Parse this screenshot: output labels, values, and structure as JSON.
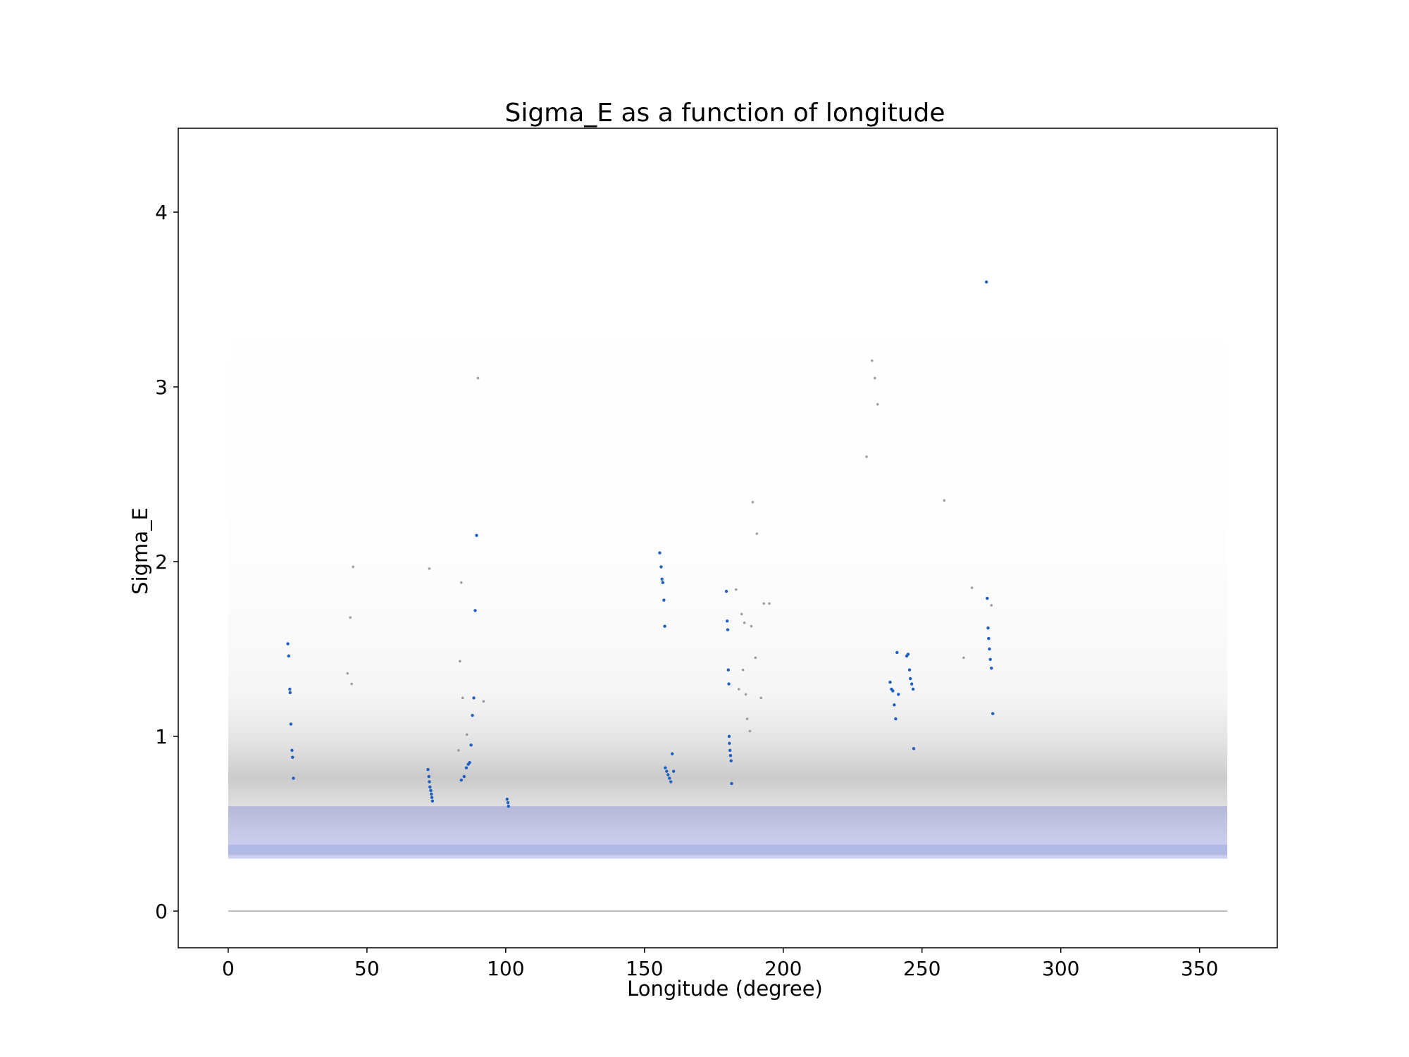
{
  "chart_data": {
    "type": "scatter",
    "title": "Sigma_E as a function of longitude",
    "xlabel": "Longitude (degree)",
    "ylabel": "Sigma_E",
    "xlim": [
      -18,
      378
    ],
    "ylim": [
      -0.21,
      4.48
    ],
    "xticks": [
      0,
      50,
      100,
      150,
      200,
      250,
      300,
      350
    ],
    "yticks": [
      0,
      1,
      2,
      3,
      4
    ],
    "grid": false,
    "legend": "none",
    "colors": {
      "background_points": "#808080",
      "density_band": "#4a5bc4",
      "highlight_points": "#1f5fbf",
      "frame": "#000000"
    },
    "background_distribution": {
      "x_range": [
        0,
        360
      ],
      "dense_band_y": [
        0.3,
        0.6
      ],
      "spread_y_max": 4.2,
      "zero_line_y": 0.0
    },
    "series": [
      {
        "values": [
          [
            21.5,
            1.53
          ],
          [
            21.8,
            1.46
          ],
          [
            22.2,
            1.27
          ],
          [
            22.3,
            1.25
          ],
          [
            22.6,
            1.07
          ],
          [
            23.0,
            0.92
          ],
          [
            23.2,
            0.88
          ],
          [
            23.5,
            0.76
          ],
          [
            72.0,
            0.81
          ],
          [
            72.3,
            0.77
          ],
          [
            72.5,
            0.74
          ],
          [
            72.7,
            0.71
          ],
          [
            73.0,
            0.69
          ],
          [
            73.2,
            0.67
          ],
          [
            73.4,
            0.65
          ],
          [
            73.6,
            0.63
          ],
          [
            84.0,
            0.75
          ],
          [
            85.0,
            0.77
          ],
          [
            85.8,
            0.82
          ],
          [
            86.5,
            0.84
          ],
          [
            87.0,
            0.85
          ],
          [
            87.5,
            0.95
          ],
          [
            88.0,
            1.12
          ],
          [
            88.5,
            1.22
          ],
          [
            89.0,
            1.72
          ],
          [
            89.5,
            2.15
          ],
          [
            100.5,
            0.64
          ],
          [
            100.8,
            0.62
          ],
          [
            101.0,
            0.6
          ],
          [
            155.5,
            2.05
          ],
          [
            156.0,
            1.97
          ],
          [
            156.3,
            1.9
          ],
          [
            156.6,
            1.88
          ],
          [
            157.0,
            1.78
          ],
          [
            157.3,
            1.63
          ],
          [
            157.5,
            0.82
          ],
          [
            158.0,
            0.8
          ],
          [
            158.5,
            0.78
          ],
          [
            159.0,
            0.76
          ],
          [
            159.5,
            0.74
          ],
          [
            160.0,
            0.9
          ],
          [
            160.5,
            0.8
          ],
          [
            179.5,
            1.83
          ],
          [
            179.8,
            1.66
          ],
          [
            180.0,
            1.61
          ],
          [
            180.2,
            1.38
          ],
          [
            180.4,
            1.3
          ],
          [
            180.5,
            1.0
          ],
          [
            180.6,
            0.96
          ],
          [
            180.8,
            0.92
          ],
          [
            181.0,
            0.89
          ],
          [
            181.2,
            0.86
          ],
          [
            181.4,
            0.73
          ],
          [
            238.5,
            1.31
          ],
          [
            239.0,
            1.27
          ],
          [
            239.5,
            1.26
          ],
          [
            240.0,
            1.18
          ],
          [
            240.5,
            1.1
          ],
          [
            241.0,
            1.48
          ],
          [
            241.5,
            1.24
          ],
          [
            244.5,
            1.46
          ],
          [
            245.0,
            1.47
          ],
          [
            245.5,
            1.38
          ],
          [
            245.8,
            1.33
          ],
          [
            246.3,
            1.3
          ],
          [
            246.8,
            1.27
          ],
          [
            247.0,
            0.93
          ],
          [
            273.2,
            3.6
          ],
          [
            273.5,
            1.79
          ],
          [
            273.8,
            1.62
          ],
          [
            274.0,
            1.56
          ],
          [
            274.3,
            1.5
          ],
          [
            274.6,
            1.44
          ],
          [
            275.0,
            1.39
          ],
          [
            275.5,
            1.13
          ]
        ]
      },
      {
        "values": [
          [
            90.0,
            3.05
          ],
          [
            84.0,
            1.88
          ],
          [
            72.5,
            1.96
          ],
          [
            45.0,
            1.97
          ],
          [
            44.0,
            1.68
          ],
          [
            43.0,
            1.36
          ],
          [
            44.5,
            1.3
          ],
          [
            83.5,
            1.43
          ],
          [
            84.5,
            1.22
          ],
          [
            86.0,
            1.01
          ],
          [
            83.0,
            0.92
          ],
          [
            92.0,
            1.2
          ],
          [
            183.0,
            1.84
          ],
          [
            185.0,
            1.7
          ],
          [
            186.0,
            1.65
          ],
          [
            188.5,
            1.63
          ],
          [
            189.0,
            2.34
          ],
          [
            190.5,
            2.16
          ],
          [
            193.0,
            1.76
          ],
          [
            195.0,
            1.76
          ],
          [
            184.0,
            1.27
          ],
          [
            186.5,
            1.24
          ],
          [
            187.0,
            1.1
          ],
          [
            188.0,
            1.03
          ],
          [
            192.0,
            1.22
          ],
          [
            190.0,
            1.45
          ],
          [
            185.5,
            1.38
          ],
          [
            232.0,
            3.15
          ],
          [
            233.0,
            3.05
          ],
          [
            234.0,
            2.9
          ],
          [
            230.0,
            2.6
          ],
          [
            258.0,
            2.35
          ],
          [
            268.0,
            1.85
          ],
          [
            275.0,
            1.75
          ],
          [
            265.0,
            1.45
          ]
        ]
      }
    ]
  }
}
